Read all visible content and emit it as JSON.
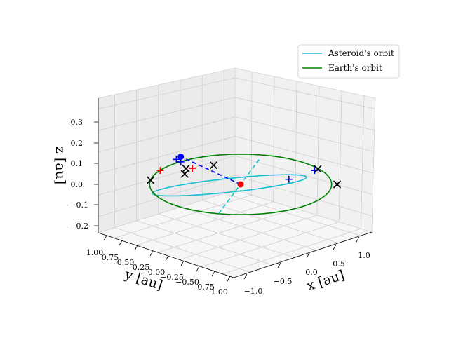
{
  "chart_data": {
    "type": "line3d",
    "projection": "3d",
    "grid": true,
    "legend_position": "top-right",
    "axes": {
      "x": {
        "label": "x [au]",
        "lim": [
          -1.2,
          1.2
        ],
        "ticks": [
          -1.0,
          -0.5,
          0.0,
          0.5,
          1.0
        ],
        "tick_labels": [
          "−1.0",
          "−0.5",
          "0.0",
          "0.5",
          "1.0"
        ]
      },
      "y": {
        "label": "y [au]",
        "lim": [
          -1.0,
          1.0
        ],
        "ticks": [
          1.0,
          0.75,
          0.5,
          0.25,
          0.0,
          -0.25,
          -0.5,
          -0.75,
          -1.0
        ],
        "tick_labels": [
          "1.00",
          "0.75",
          "0.50",
          "0.25",
          "0.00",
          "−0.25",
          "−0.50",
          "−0.75",
          "−1.00"
        ]
      },
      "z": {
        "label": "z [au]",
        "lim": [
          -0.25,
          0.4
        ],
        "ticks": [
          -0.2,
          -0.1,
          0.0,
          0.1,
          0.2,
          0.3
        ],
        "tick_labels": [
          "−0.2",
          "−0.1",
          "0.0",
          "0.1",
          "0.2",
          "0.3"
        ]
      }
    },
    "series": [
      {
        "name": "Asteroid's orbit",
        "color": "#17becf",
        "orbit": {
          "a": 0.85,
          "e": 0.15,
          "inclination_deg": 21.2,
          "node_longitude_deg": 149.1,
          "periapsis_arg_deg": 0
        }
      },
      {
        "name": "Earth's orbit",
        "color": "#008000",
        "orbit": {
          "a": 1.0,
          "e": 0.0,
          "inclination_deg": 0,
          "node_longitude_deg": 0,
          "periapsis_arg_deg": 0
        }
      }
    ],
    "line_of_nodes": {
      "color": "#17becf",
      "style": "dashed",
      "from": [
        -0.85,
        -0.51,
        0.0
      ],
      "to": [
        0.73,
        0.44,
        0.0
      ]
    },
    "vector": {
      "color": "#0000ff",
      "style": "dashed",
      "from": [
        0.0,
        0.0,
        0.0
      ],
      "to": [
        -0.35,
        0.58,
        0.22
      ]
    },
    "focus_point": {
      "color": "#ff0000",
      "marker": "circle",
      "xyz": [
        0.0,
        0.0,
        0.0
      ]
    },
    "asteroid_point": {
      "color": "#0000ff",
      "marker": "circle",
      "xyz": [
        -0.35,
        0.58,
        0.22
      ]
    },
    "black_x_markers": [
      [
        -0.95,
        -0.1,
        0.37
      ],
      [
        0.45,
        -0.75,
        0.21
      ],
      [
        0.75,
        -0.75,
        0.0
      ],
      [
        -0.6,
        0.8,
        0.0
      ],
      [
        0.48,
        0.9,
        -0.1
      ],
      [
        0.1,
        0.97,
        -0.12
      ]
    ],
    "red_plus_markers": [
      [
        -0.8,
        -0.05,
        0.33
      ],
      [
        -0.3,
        0.95,
        0.0
      ]
    ],
    "blue_plus_markers": [
      [
        -0.4,
        0.6,
        0.2
      ],
      [
        0.3,
        -0.45,
        0.08
      ],
      [
        0.9,
        -0.25,
        0.0
      ],
      [
        -0.35,
        0.58,
        0.17
      ]
    ]
  }
}
